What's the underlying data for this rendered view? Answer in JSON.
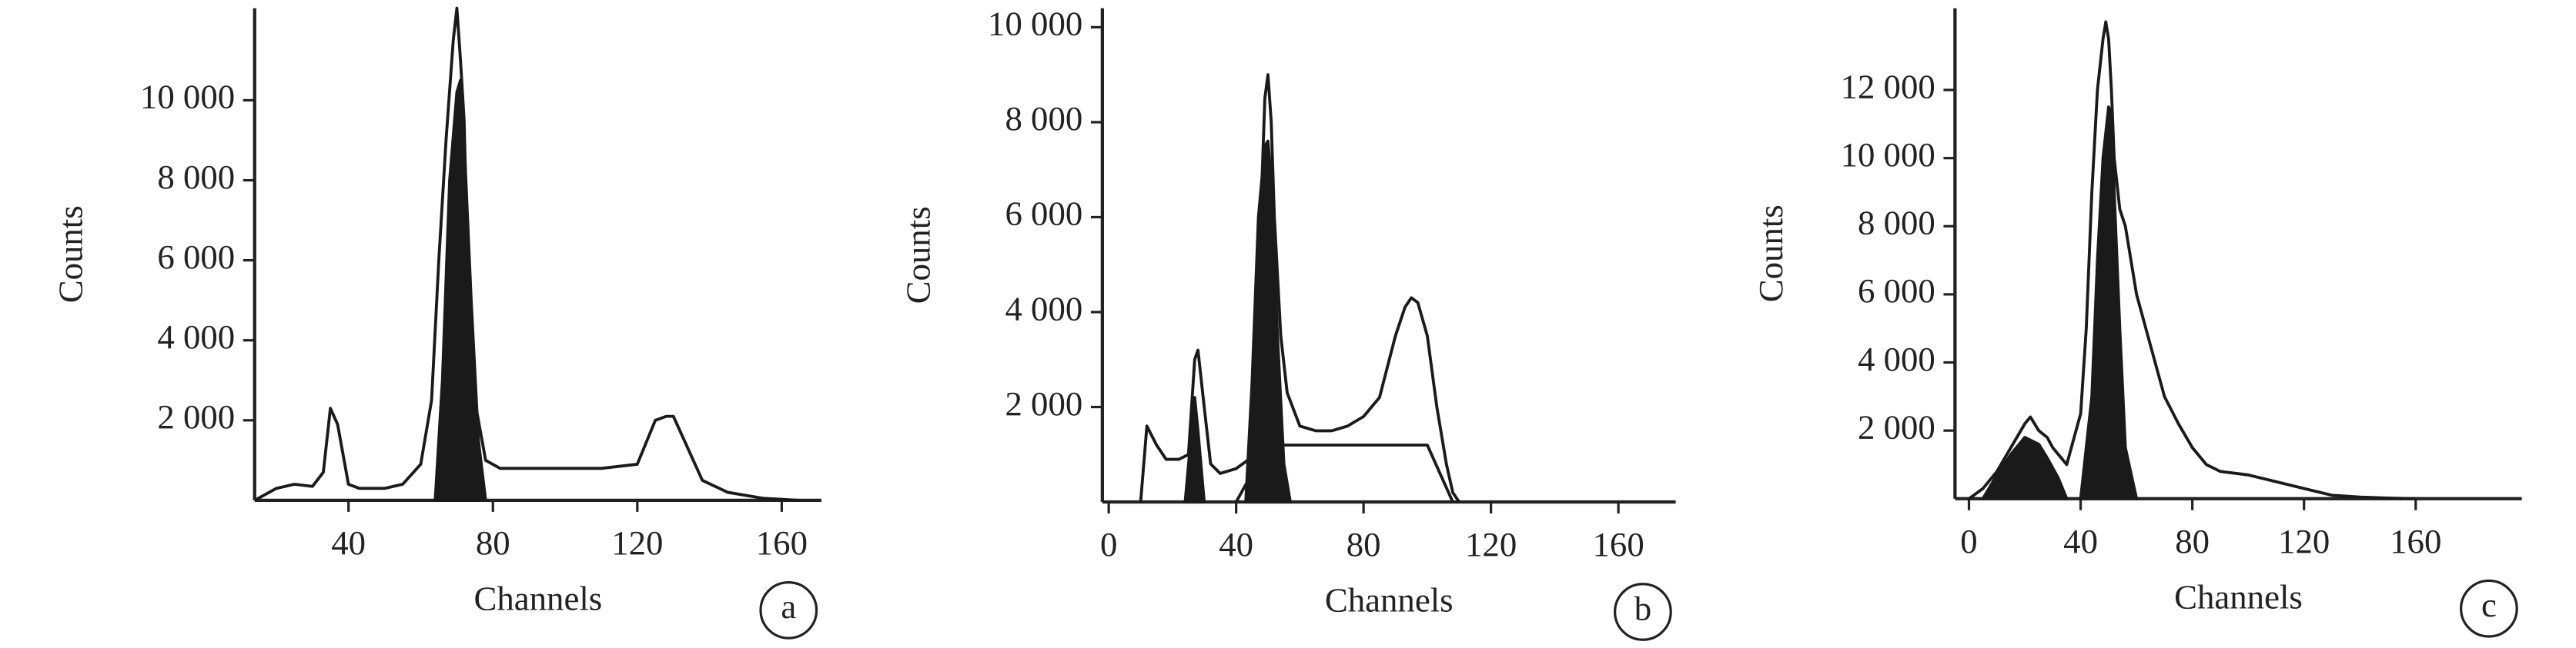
{
  "chart_data": [
    {
      "type": "line",
      "xlabel": "Channels",
      "ylabel": "Counts",
      "panel": "a",
      "xlim": [
        14,
        171
      ],
      "ylim": [
        0,
        12300
      ],
      "xticks": [
        40,
        80,
        120,
        160
      ],
      "yticks": [
        {
          "value": 2000,
          "label": "2 000"
        },
        {
          "value": 4000,
          "label": "4 000"
        },
        {
          "value": 6000,
          "label": "6 000"
        },
        {
          "value": 8000,
          "label": "8 000"
        },
        {
          "value": 10000,
          "label": "10 000"
        }
      ],
      "series": [
        {
          "color": "#1a1a1a",
          "fill": false,
          "x": [
            14,
            20,
            25,
            30,
            33,
            35,
            37,
            40,
            43,
            50,
            55,
            60,
            63,
            65,
            67,
            69,
            70,
            71,
            72,
            73,
            75,
            78,
            82,
            90,
            100,
            110,
            120,
            125,
            128,
            130,
            133,
            138,
            145,
            155,
            165
          ],
          "values": [
            0,
            300,
            400,
            350,
            700,
            2300,
            1900,
            400,
            300,
            300,
            400,
            900,
            2500,
            6000,
            9000,
            11500,
            12300,
            11000,
            9500,
            6000,
            2500,
            1000,
            800,
            800,
            800,
            800,
            900,
            2000,
            2100,
            2100,
            1500,
            500,
            200,
            50,
            0
          ]
        },
        {
          "color": "#1a1a1a",
          "fill": true,
          "x": [
            64,
            66,
            68,
            70,
            71,
            72,
            74,
            76,
            78
          ],
          "values": [
            0,
            3000,
            8000,
            10200,
            10500,
            9000,
            5000,
            1500,
            0
          ]
        }
      ]
    },
    {
      "type": "line",
      "xlabel": "Channels",
      "ylabel": "Counts",
      "panel": "b",
      "xlim": [
        -2,
        178
      ],
      "ylim": [
        0,
        10400
      ],
      "xticks": [
        0,
        40,
        80,
        120,
        160
      ],
      "yticks": [
        {
          "value": 2000,
          "label": "2 000"
        },
        {
          "value": 4000,
          "label": "4 000"
        },
        {
          "value": 6000,
          "label": "6 000"
        },
        {
          "value": 8000,
          "label": "8 000"
        },
        {
          "value": 10000,
          "label": "10 000"
        }
      ],
      "series": [
        {
          "color": "#1a1a1a",
          "fill": false,
          "x": [
            10,
            12,
            15,
            18,
            22,
            25,
            27,
            28,
            30,
            32,
            35,
            40,
            44,
            46,
            48,
            49,
            50,
            51,
            52,
            54,
            56,
            60,
            65,
            70,
            75,
            80,
            85,
            90,
            93,
            95,
            97,
            100,
            103,
            106,
            108,
            110
          ],
          "values": [
            0,
            1600,
            1200,
            900,
            900,
            1000,
            3000,
            3200,
            2000,
            800,
            600,
            700,
            900,
            3000,
            6500,
            8500,
            9000,
            8000,
            6000,
            3500,
            2300,
            1600,
            1500,
            1500,
            1600,
            1800,
            2200,
            3500,
            4100,
            4300,
            4200,
            3500,
            2000,
            800,
            200,
            0
          ]
        },
        {
          "color": "#1a1a1a",
          "fill": false,
          "x": [
            40,
            50,
            60,
            100,
            108
          ],
          "values": [
            0,
            1200,
            1200,
            1200,
            0
          ]
        },
        {
          "color": "#1a1a1a",
          "fill": true,
          "x": [
            24,
            26,
            27,
            28,
            30
          ],
          "values": [
            0,
            1500,
            2200,
            1500,
            0
          ]
        },
        {
          "color": "#1a1a1a",
          "fill": true,
          "x": [
            43,
            45,
            47,
            49,
            50,
            51,
            53,
            55,
            57
          ],
          "values": [
            0,
            2500,
            6000,
            7500,
            7600,
            6800,
            3500,
            800,
            0
          ]
        }
      ]
    },
    {
      "type": "line",
      "xlabel": "Channels",
      "ylabel": "Counts",
      "panel": "c",
      "xlim": [
        -5,
        198
      ],
      "ylim": [
        0,
        14400
      ],
      "xticks": [
        0,
        40,
        80,
        120,
        160
      ],
      "yticks": [
        {
          "value": 2000,
          "label": "2 000"
        },
        {
          "value": 4000,
          "label": "4 000"
        },
        {
          "value": 6000,
          "label": "6 000"
        },
        {
          "value": 8000,
          "label": "8 000"
        },
        {
          "value": 10000,
          "label": "10 000"
        },
        {
          "value": 12000,
          "label": "12 000"
        }
      ],
      "series": [
        {
          "color": "#1a1a1a",
          "fill": false,
          "x": [
            0,
            5,
            10,
            15,
            20,
            22,
            25,
            28,
            30,
            35,
            40,
            42,
            44,
            46,
            48,
            49,
            50,
            51,
            52,
            54,
            56,
            60,
            65,
            70,
            75,
            80,
            85,
            90,
            100,
            110,
            120,
            130,
            140,
            150,
            160
          ],
          "values": [
            0,
            300,
            800,
            1500,
            2200,
            2400,
            2000,
            1800,
            1500,
            1000,
            2500,
            5000,
            9000,
            12000,
            13500,
            14000,
            13500,
            12000,
            10000,
            8500,
            8000,
            6000,
            4500,
            3000,
            2200,
            1500,
            1000,
            800,
            700,
            500,
            300,
            100,
            50,
            20,
            0
          ]
        },
        {
          "color": "#1a1a1a",
          "fill": true,
          "x": [
            5,
            10,
            15,
            20,
            25,
            28,
            32,
            35
          ],
          "values": [
            0,
            700,
            1300,
            1800,
            1600,
            1200,
            600,
            0
          ]
        },
        {
          "color": "#1a1a1a",
          "fill": true,
          "x": [
            40,
            44,
            46,
            48,
            50,
            51,
            52,
            54,
            56,
            60
          ],
          "values": [
            0,
            3000,
            7000,
            10000,
            11500,
            11300,
            9000,
            5000,
            1500,
            0
          ]
        }
      ]
    }
  ]
}
